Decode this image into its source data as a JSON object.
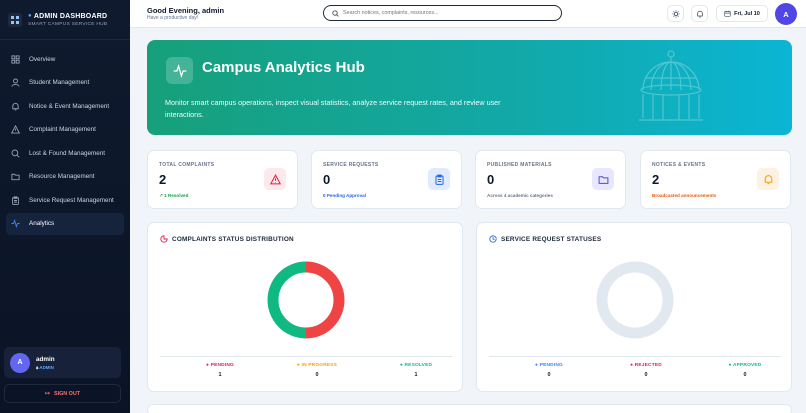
{
  "sidebar": {
    "brand_title": "ADMIN DASHBOARD",
    "brand_subtitle": "SMART CAMPUS SERVICE HUB",
    "items": [
      {
        "label": "Overview",
        "icon": "grid-icon"
      },
      {
        "label": "Student Management",
        "icon": "user-icon"
      },
      {
        "label": "Notice & Event Management",
        "icon": "bell-icon"
      },
      {
        "label": "Complaint Management",
        "icon": "warning-icon"
      },
      {
        "label": "Lost & Found Management",
        "icon": "search-icon"
      },
      {
        "label": "Resource Management",
        "icon": "folder-icon"
      },
      {
        "label": "Service Request Management",
        "icon": "clipboard-icon"
      },
      {
        "label": "Analytics",
        "icon": "activity-icon",
        "active": true
      }
    ],
    "user": {
      "initial": "A",
      "name": "admin",
      "role": "ADMIN"
    },
    "signout_label": "SIGN OUT"
  },
  "header": {
    "greeting": "Good Evening, admin",
    "subtitle": "Have a productive day!",
    "search_placeholder": "Search notices, complaints, resources...",
    "date": "Fri, Jul 10",
    "avatar_initial": "A"
  },
  "hero": {
    "title": "Campus Analytics Hub",
    "description": "Monitor smart campus operations, inspect visual statistics, analyze service request rates, and review user interactions."
  },
  "stats": [
    {
      "label": "TOTAL COMPLAINTS",
      "value": "2",
      "note": "1 Resolved",
      "note_color": "#16a34a",
      "icon": "warning-icon",
      "icon_bg": "#fde8ec",
      "icon_color": "#e11d48"
    },
    {
      "label": "SERVICE REQUESTS",
      "value": "0",
      "note": "0 Pending Approval",
      "note_color": "#2563eb",
      "icon": "clipboard-icon",
      "icon_bg": "#e0ebfd",
      "icon_color": "#2563eb"
    },
    {
      "label": "PUBLISHED MATERIALS",
      "value": "0",
      "note": "Across 4 academic categories",
      "note_color": "#64748b",
      "icon": "folder-icon",
      "icon_bg": "#e8e7fd",
      "icon_color": "#4f46e5"
    },
    {
      "label": "NOTICES & EVENTS",
      "value": "2",
      "note": "Broadcasted announcements",
      "note_color": "#ea580c",
      "icon": "bell-icon",
      "icon_bg": "#fdf1e3",
      "icon_color": "#f59e0b"
    }
  ],
  "chart_data": [
    {
      "type": "pie",
      "title": "COMPLAINTS STATUS DISTRIBUTION",
      "categories": [
        "PENDING",
        "IN PROGRESS",
        "RESOLVED"
      ],
      "values": [
        1,
        0,
        1
      ],
      "colors": [
        "#ef4444",
        "#f59e0b",
        "#10b981"
      ]
    },
    {
      "type": "pie",
      "title": "SERVICE REQUEST STATUSES",
      "categories": [
        "PENDING",
        "REJECTED",
        "APPROVED"
      ],
      "values": [
        0,
        0,
        0
      ],
      "colors": [
        "#3b82f6",
        "#ef4444",
        "#10b981"
      ]
    }
  ]
}
